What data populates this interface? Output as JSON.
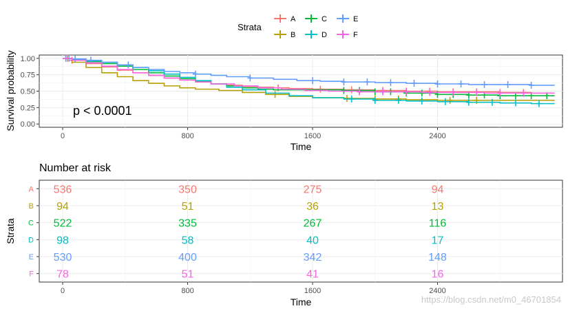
{
  "legend": {
    "title": "Strata",
    "items": [
      {
        "key": "A",
        "label": "A",
        "color": "#F8766D"
      },
      {
        "key": "B",
        "label": "B",
        "color": "#B79F00"
      },
      {
        "key": "C",
        "label": "C",
        "color": "#00BA38"
      },
      {
        "key": "D",
        "label": "D",
        "color": "#00BFC4"
      },
      {
        "key": "E",
        "label": "E",
        "color": "#619CFF"
      },
      {
        "key": "F",
        "label": "F",
        "color": "#F564E3"
      }
    ]
  },
  "chart_data": [
    {
      "type": "line",
      "name": "survival-curve",
      "xlabel": "Time",
      "ylabel": "Survival probability",
      "xlim": [
        -150,
        3200
      ],
      "ylim": [
        -0.05,
        1.05
      ],
      "xticks": [
        0,
        800,
        1600,
        2400
      ],
      "xtick_labels": [
        "0",
        "800",
        "1600",
        "2400"
      ],
      "yticks": [
        0,
        0.25,
        0.5,
        0.75,
        1.0
      ],
      "ytick_labels": [
        "0.00",
        "0.25",
        "0.50",
        "0.75",
        "1.00"
      ],
      "annotation": "p < 0.0001",
      "series": [
        {
          "name": "A",
          "color": "#F8766D",
          "x": [
            0,
            60,
            150,
            250,
            350,
            450,
            550,
            650,
            750,
            850,
            950,
            1050,
            1150,
            1250,
            1350,
            1450,
            1600,
            1800,
            2000,
            2200,
            2400,
            2600,
            2800,
            3000,
            3150
          ],
          "y": [
            1.0,
            0.97,
            0.92,
            0.87,
            0.82,
            0.78,
            0.74,
            0.7,
            0.67,
            0.64,
            0.61,
            0.59,
            0.57,
            0.56,
            0.55,
            0.54,
            0.53,
            0.52,
            0.51,
            0.5,
            0.49,
            0.49,
            0.48,
            0.47,
            0.47
          ],
          "censor_x": [
            30,
            60,
            1380,
            1650,
            1850,
            2050,
            2200,
            2350,
            2500,
            2650,
            2800,
            2950
          ]
        },
        {
          "name": "B",
          "color": "#B79F00",
          "x": [
            0,
            60,
            150,
            250,
            350,
            450,
            550,
            650,
            750,
            850,
            1000,
            1150,
            1300,
            1450,
            1600,
            1800,
            2000,
            2200,
            2400,
            2600,
            2800,
            3000,
            3150
          ],
          "y": [
            1.0,
            0.94,
            0.86,
            0.78,
            0.72,
            0.66,
            0.62,
            0.58,
            0.55,
            0.53,
            0.51,
            0.48,
            0.45,
            0.42,
            0.4,
            0.39,
            0.38,
            0.37,
            0.36,
            0.36,
            0.36,
            0.36,
            0.36
          ],
          "censor_x": [
            1360,
            1820,
            2000,
            2150,
            2480,
            2650
          ]
        },
        {
          "name": "C",
          "color": "#00BA38",
          "x": [
            0,
            60,
            150,
            250,
            350,
            450,
            550,
            650,
            750,
            850,
            950,
            1050,
            1150,
            1250,
            1350,
            1450,
            1600,
            1800,
            2000,
            2200,
            2400,
            2600,
            2800,
            3000,
            3150
          ],
          "y": [
            1.0,
            0.98,
            0.95,
            0.92,
            0.88,
            0.83,
            0.78,
            0.73,
            0.69,
            0.65,
            0.61,
            0.58,
            0.55,
            0.53,
            0.52,
            0.52,
            0.52,
            0.51,
            0.49,
            0.47,
            0.45,
            0.44,
            0.43,
            0.43,
            0.43
          ],
          "censor_x": [
            1800,
            1900,
            2000,
            2100,
            2200,
            2300,
            2400,
            2500,
            2600,
            2700,
            2800,
            2900,
            3000,
            3100
          ]
        },
        {
          "name": "D",
          "color": "#00BFC4",
          "x": [
            0,
            60,
            150,
            250,
            350,
            450,
            550,
            650,
            750,
            850,
            950,
            1050,
            1150,
            1300,
            1450,
            1600,
            1800,
            2000,
            2200,
            2400,
            2600,
            2800,
            3000,
            3150
          ],
          "y": [
            1.0,
            0.98,
            0.96,
            0.94,
            0.9,
            0.86,
            0.81,
            0.76,
            0.71,
            0.66,
            0.61,
            0.56,
            0.52,
            0.47,
            0.43,
            0.4,
            0.38,
            0.36,
            0.35,
            0.34,
            0.33,
            0.32,
            0.31,
            0.31
          ],
          "censor_x": [
            1850,
            2000,
            2150,
            2300,
            2450,
            2600,
            2750,
            2900,
            3050
          ]
        },
        {
          "name": "E",
          "color": "#619CFF",
          "x": [
            0,
            60,
            150,
            250,
            350,
            450,
            550,
            650,
            750,
            850,
            950,
            1050,
            1200,
            1350,
            1500,
            1650,
            1800,
            2000,
            2200,
            2400,
            2600,
            2800,
            3000,
            3150
          ],
          "y": [
            1.0,
            0.99,
            0.97,
            0.94,
            0.9,
            0.86,
            0.83,
            0.8,
            0.78,
            0.76,
            0.74,
            0.72,
            0.7,
            0.68,
            0.66,
            0.65,
            0.64,
            0.63,
            0.62,
            0.61,
            0.6,
            0.6,
            0.59,
            0.59
          ],
          "censor_x": [
            20,
            40,
            80,
            180,
            420,
            850,
            1200,
            1600,
            1800,
            1950,
            2100,
            2250,
            2400,
            2550,
            2700,
            2850,
            3000
          ]
        },
        {
          "name": "F",
          "color": "#F564E3",
          "x": [
            0,
            60,
            150,
            250,
            350,
            450,
            550,
            650,
            750,
            850,
            950,
            1100,
            1250,
            1400,
            1550,
            1700,
            1900,
            2100,
            2300,
            2500,
            2700,
            2900,
            3150
          ],
          "y": [
            1.0,
            0.97,
            0.93,
            0.88,
            0.83,
            0.78,
            0.74,
            0.7,
            0.67,
            0.64,
            0.61,
            0.58,
            0.55,
            0.53,
            0.51,
            0.5,
            0.49,
            0.49,
            0.48,
            0.48,
            0.47,
            0.47,
            0.47
          ],
          "censor_x": [
            1900,
            2050,
            2200,
            2350,
            2500,
            2650,
            2800,
            2950
          ]
        }
      ]
    },
    {
      "type": "table",
      "name": "number-at-risk",
      "title": "Number at risk",
      "xlabel": "Time",
      "ylabel": "Strata",
      "xlim": [
        -150,
        3200
      ],
      "xticks": [
        0,
        800,
        1600,
        2400
      ],
      "xtick_labels": [
        "0",
        "800",
        "1600",
        "2400"
      ],
      "rows": [
        {
          "name": "A",
          "color": "#F8766D",
          "values": [
            "536",
            "350",
            "275",
            "94"
          ]
        },
        {
          "name": "B",
          "color": "#B79F00",
          "values": [
            "94",
            "51",
            "36",
            "13"
          ]
        },
        {
          "name": "C",
          "color": "#00BA38",
          "values": [
            "522",
            "335",
            "267",
            "116"
          ]
        },
        {
          "name": "D",
          "color": "#00BFC4",
          "values": [
            "98",
            "58",
            "40",
            "17"
          ]
        },
        {
          "name": "E",
          "color": "#619CFF",
          "values": [
            "530",
            "400",
            "342",
            "148"
          ]
        },
        {
          "name": "F",
          "color": "#F564E3",
          "values": [
            "78",
            "51",
            "41",
            "16"
          ]
        }
      ]
    }
  ],
  "watermark": "https://blog.csdn.net/m0_46701854"
}
